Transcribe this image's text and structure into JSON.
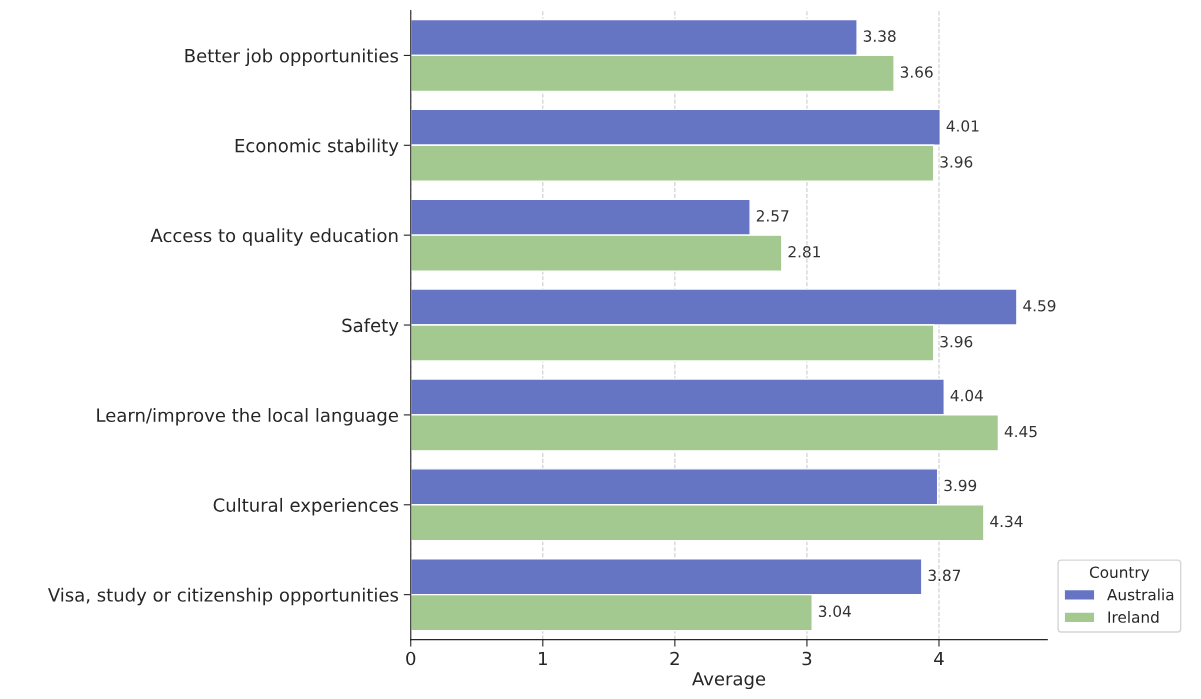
{
  "chart_data": {
    "type": "bar",
    "orientation": "horizontal",
    "xlabel": "Average",
    "legend_title": "Country",
    "categories": [
      "Better job opportunities",
      "Economic stability",
      "Access to quality education",
      "Safety",
      "Learn/improve the local language",
      "Cultural experiences",
      "Visa, study or citizenship opportunities"
    ],
    "series": [
      {
        "name": "Australia",
        "color": "#6674c4",
        "values": [
          3.38,
          4.01,
          2.57,
          4.59,
          4.04,
          3.99,
          3.87
        ]
      },
      {
        "name": "Ireland",
        "color": "#a3c990",
        "values": [
          3.66,
          3.96,
          2.81,
          3.96,
          4.45,
          4.34,
          3.04
        ]
      }
    ],
    "xlim": [
      0,
      4.82
    ],
    "xticks": [
      0,
      1,
      2,
      3,
      4
    ],
    "grid": "x",
    "legend": "bottom right",
    "data_labels": true
  }
}
